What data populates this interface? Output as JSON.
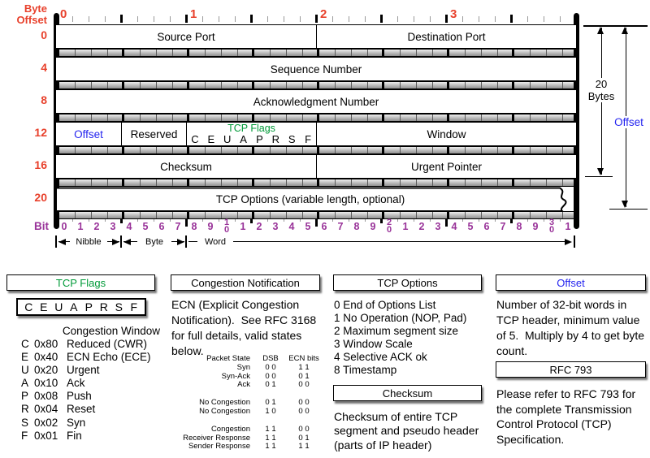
{
  "colors": {
    "red": "#e8412c",
    "purple": "#993399",
    "green": "#009a38",
    "blue": "#2424ef"
  },
  "diagram": {
    "byte_offset_label_line1": "Byte",
    "byte_offset_label_line2": "Offset",
    "byte_labels": [
      "0",
      "1",
      "2",
      "3"
    ],
    "bit_axis_label": "Bit",
    "bit_numbers": [
      "0",
      "1",
      "2",
      "3",
      "4",
      "5",
      "6",
      "7",
      "8",
      "9",
      "10",
      "1",
      "2",
      "3",
      "4",
      "5",
      "6",
      "7",
      "8",
      "9",
      "20",
      "1",
      "2",
      "3",
      "4",
      "5",
      "6",
      "7",
      "8",
      "9",
      "30",
      "1"
    ],
    "scale_markers": {
      "nibble": "Nibble",
      "byte": "Byte",
      "word": "Word"
    },
    "rows": [
      {
        "offset": "0",
        "cells": [
          {
            "label": "Source Port",
            "bits": 16
          },
          {
            "label": "Destination Port",
            "bits": 16
          }
        ]
      },
      {
        "offset": "4",
        "cells": [
          {
            "label": "Sequence Number",
            "bits": 32
          }
        ]
      },
      {
        "offset": "8",
        "cells": [
          {
            "label": "Acknowledgment Number",
            "bits": 32
          }
        ]
      },
      {
        "offset": "12",
        "cells": [
          {
            "label": "Offset",
            "bits": 4,
            "text_color": "blue"
          },
          {
            "label": "Reserved",
            "bits": 4
          },
          {
            "label": "TCP Flags",
            "bits": 8,
            "type": "flags",
            "flag_letters": [
              "C",
              "E",
              "U",
              "A",
              "P",
              "R",
              "S",
              "F"
            ]
          },
          {
            "label": "Window",
            "bits": 16
          }
        ]
      },
      {
        "offset": "16",
        "cells": [
          {
            "label": "Checksum",
            "bits": 16
          },
          {
            "label": "Urgent Pointer",
            "bits": 16
          }
        ]
      },
      {
        "offset": "20",
        "cells": [
          {
            "label": "TCP Options (variable length, optional)",
            "bits": 32,
            "torn_edge": true
          }
        ]
      }
    ],
    "right_annotations": {
      "bytes_label_line1": "20",
      "bytes_label_line2": "Bytes",
      "offset_label": "Offset"
    }
  },
  "legend": {
    "tcp_flags": {
      "title": "TCP Flags",
      "flag_letters": [
        "C",
        "E",
        "U",
        "A",
        "P",
        "R",
        "S",
        "F"
      ],
      "subtitle": "Congestion Window",
      "items": [
        {
          "letter": "C",
          "hex": "0x80",
          "name": "Reduced (CWR)"
        },
        {
          "letter": "E",
          "hex": "0x40",
          "name": "ECN Echo (ECE)"
        },
        {
          "letter": "U",
          "hex": "0x20",
          "name": "Urgent"
        },
        {
          "letter": "A",
          "hex": "0x10",
          "name": "Ack"
        },
        {
          "letter": "P",
          "hex": "0x08",
          "name": "Push"
        },
        {
          "letter": "R",
          "hex": "0x04",
          "name": "Reset"
        },
        {
          "letter": "S",
          "hex": "0x02",
          "name": "Syn"
        },
        {
          "letter": "F",
          "hex": "0x01",
          "name": "Fin"
        }
      ]
    },
    "congestion_notification": {
      "title": "Congestion Notification",
      "description": "ECN (Explicit Congestion Notification).  See RFC 3168 for full details, valid states below.",
      "table": {
        "headers": [
          "Packet State",
          "DSB",
          "ECN bits"
        ],
        "groups": [
          {
            "rows": [
              [
                "Syn",
                "0 0",
                "1 1"
              ],
              [
                "Syn-Ack",
                "0 0",
                "0 1"
              ],
              [
                "Ack",
                "0 1",
                "0 0"
              ]
            ]
          },
          {
            "rows": [
              [
                "No Congestion",
                "0 1",
                "0 0"
              ],
              [
                "No Congestion",
                "1 0",
                "0 0"
              ]
            ]
          },
          {
            "rows": [
              [
                "Congestion",
                "1 1",
                "0 0"
              ],
              [
                "Receiver Response",
                "1 1",
                "0 1"
              ],
              [
                "Sender Response",
                "1 1",
                "1 1"
              ]
            ]
          }
        ]
      }
    },
    "tcp_options": {
      "title": "TCP Options",
      "items": [
        "0 End of Options List",
        "1 No Operation (NOP, Pad)",
        "2 Maximum segment size",
        "3 Window Scale",
        "4 Selective ACK ok",
        "8 Timestamp"
      ]
    },
    "checksum": {
      "title": "Checksum",
      "description": "Checksum of entire TCP segment and pseudo header (parts of IP header)"
    },
    "offset": {
      "title": "Offset",
      "description": "Number of 32-bit words in TCP header, minimum value of 5.  Multiply by 4 to get byte count."
    },
    "rfc": {
      "title": "RFC 793",
      "description": "Please refer to RFC 793 for the complete Transmission Control Protocol (TCP) Specification."
    }
  }
}
